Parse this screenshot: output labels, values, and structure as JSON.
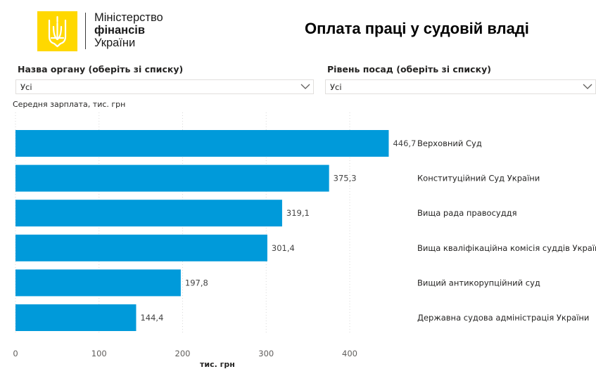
{
  "logo": {
    "line1": "Міністерство",
    "line2": "фінансів",
    "line3": "України",
    "emblem_icon": "trident-icon",
    "emblem_color": "#ffd800"
  },
  "page_title": "Оплата праці у судовій владі",
  "filters": [
    {
      "label": "Назва органу (оберіть зі списку)",
      "value": "Усі"
    },
    {
      "label": "Рівень посад (оберіть зі списку)",
      "value": "Усі"
    }
  ],
  "chart_data": {
    "type": "bar",
    "orientation": "horizontal",
    "subtitle": "Середня зарплата, тис. грн",
    "xlabel": "тис. грн",
    "ylabel": "",
    "categories": [
      "Верховний Суд",
      "Конституційний Суд України",
      "Вища рада правосуддя",
      "Вища кваліфікаційна комісія суддів України",
      "Вищий антикорупційний суд",
      "Державна судова адміністрація України"
    ],
    "values": [
      446.7,
      375.3,
      319.1,
      301.4,
      197.8,
      144.4
    ],
    "data_labels": [
      "446,7",
      "375,3",
      "319,1",
      "301,4",
      "197,8",
      "144,4"
    ],
    "xlim": [
      0,
      480
    ],
    "xticks": [
      0,
      100,
      200,
      300,
      400
    ],
    "grid": true,
    "bar_color": "#009ada"
  }
}
